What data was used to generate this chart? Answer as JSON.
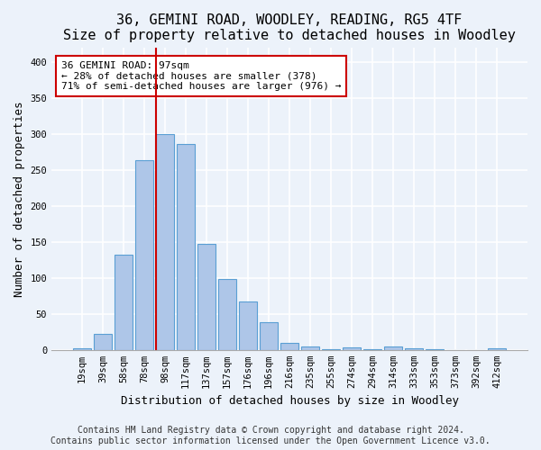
{
  "title": "36, GEMINI ROAD, WOODLEY, READING, RG5 4TF",
  "subtitle": "Size of property relative to detached houses in Woodley",
  "xlabel": "Distribution of detached houses by size in Woodley",
  "ylabel": "Number of detached properties",
  "categories": [
    "19sqm",
    "39sqm",
    "58sqm",
    "78sqm",
    "98sqm",
    "117sqm",
    "137sqm",
    "157sqm",
    "176sqm",
    "196sqm",
    "216sqm",
    "235sqm",
    "255sqm",
    "274sqm",
    "294sqm",
    "314sqm",
    "333sqm",
    "353sqm",
    "373sqm",
    "392sqm",
    "412sqm"
  ],
  "values": [
    2,
    22,
    132,
    263,
    300,
    286,
    147,
    98,
    67,
    38,
    10,
    5,
    1,
    4,
    1,
    5,
    2,
    1,
    0,
    0,
    2
  ],
  "bar_color": "#aec6e8",
  "bar_edge_color": "#5a9fd4",
  "vline_index": 4,
  "vline_color": "#cc0000",
  "annotation_text": "36 GEMINI ROAD: 97sqm\n← 28% of detached houses are smaller (378)\n71% of semi-detached houses are larger (976) →",
  "annotation_box_facecolor": "#ffffff",
  "annotation_box_edgecolor": "#cc0000",
  "ylim": [
    0,
    420
  ],
  "yticks": [
    0,
    50,
    100,
    150,
    200,
    250,
    300,
    350,
    400
  ],
  "footer": "Contains HM Land Registry data © Crown copyright and database right 2024.\nContains public sector information licensed under the Open Government Licence v3.0.",
  "background_color": "#ecf2fa",
  "grid_color": "#ffffff",
  "title_fontsize": 11,
  "xlabel_fontsize": 9,
  "ylabel_fontsize": 9,
  "tick_fontsize": 7.5,
  "annotation_fontsize": 8,
  "footer_fontsize": 7
}
